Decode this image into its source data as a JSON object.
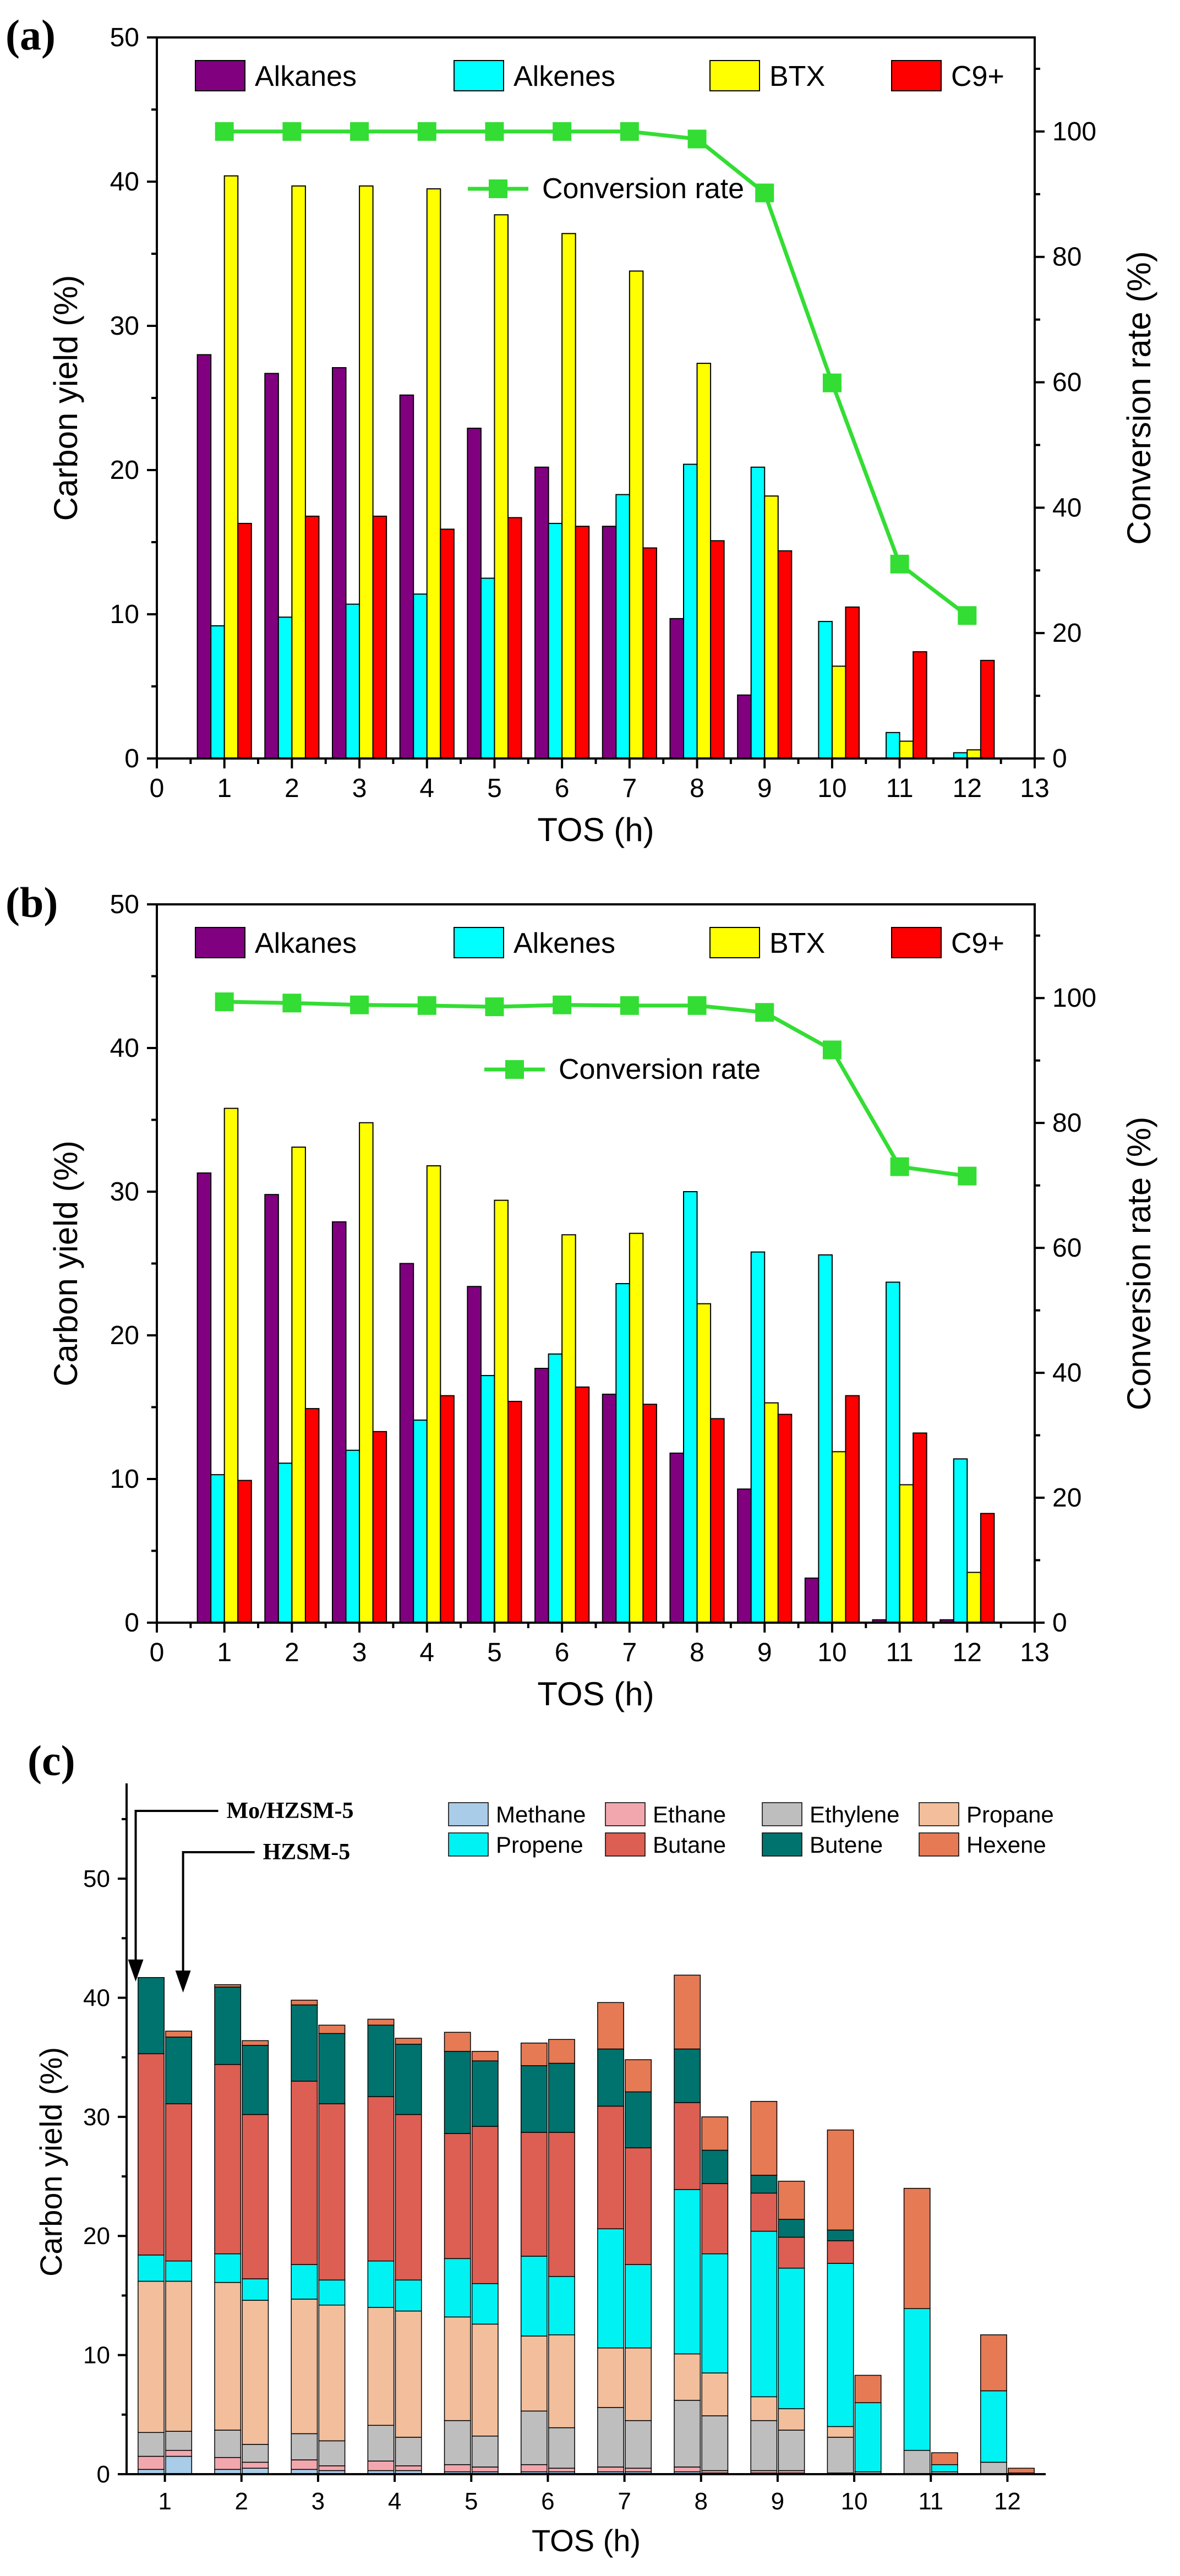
{
  "chart_data": [
    {
      "id": "a",
      "type": "bar",
      "panel_label": "(a)",
      "title": "",
      "xlabel": "TOS (h)",
      "ylabel": "Carbon yield (%)",
      "y2label": "Conversion rate (%)",
      "xlim": [
        0,
        13
      ],
      "ylim": [
        0,
        50
      ],
      "y2lim": [
        0,
        115
      ],
      "x_ticks": [
        "0",
        "1",
        "2",
        "3",
        "4",
        "5",
        "6",
        "7",
        "8",
        "9",
        "10",
        "11",
        "12",
        "13"
      ],
      "y_ticks": [
        "0",
        "10",
        "20",
        "30",
        "40",
        "50"
      ],
      "y2_ticks": [
        "0",
        "20",
        "40",
        "60",
        "80",
        "100"
      ],
      "categories": [
        1,
        2,
        3,
        4,
        5,
        6,
        7,
        8,
        9,
        10,
        11,
        12
      ],
      "legend": [
        "Alkanes",
        "Alkenes",
        "BTX",
        "C9+",
        "Conversion rate"
      ],
      "legend_position": "top",
      "series": [
        {
          "name": "Alkanes",
          "color": "#800080",
          "values": [
            28,
            26.7,
            27.1,
            25.2,
            22.9,
            20.2,
            16.1,
            9.7,
            4.4,
            0,
            0,
            0
          ]
        },
        {
          "name": "Alkenes",
          "color": "#00FFFF",
          "values": [
            9.2,
            9.8,
            10.7,
            11.4,
            12.5,
            16.3,
            18.3,
            20.4,
            20.2,
            9.5,
            1.8,
            0.4
          ]
        },
        {
          "name": "BTX",
          "color": "#FFFF00",
          "values": [
            40.4,
            39.7,
            39.7,
            39.5,
            37.7,
            36.4,
            33.8,
            27.4,
            18.2,
            6.4,
            1.2,
            0.6
          ]
        },
        {
          "name": "C9+",
          "color": "#FF0000",
          "values": [
            16.3,
            16.8,
            16.8,
            15.9,
            16.7,
            16.1,
            14.6,
            15.1,
            14.4,
            10.5,
            7.4,
            6.8
          ]
        }
      ],
      "line_series": {
        "name": "Conversion rate",
        "color": "#33DD33",
        "axis": "right",
        "values": [
          100,
          100,
          100,
          100,
          100,
          100,
          100,
          98.8,
          90.2,
          59.9,
          31,
          22.8
        ]
      }
    },
    {
      "id": "b",
      "type": "bar",
      "panel_label": "(b)",
      "title": "",
      "xlabel": "TOS (h)",
      "ylabel": "Carbon yield (%)",
      "y2label": "Conversion rate (%)",
      "xlim": [
        0,
        13
      ],
      "ylim": [
        0,
        50
      ],
      "y2lim": [
        0,
        115
      ],
      "x_ticks": [
        "0",
        "1",
        "2",
        "3",
        "4",
        "5",
        "6",
        "7",
        "8",
        "9",
        "10",
        "11",
        "12",
        "13"
      ],
      "y_ticks": [
        "0",
        "10",
        "20",
        "30",
        "40",
        "50"
      ],
      "y2_ticks": [
        "0",
        "20",
        "40",
        "60",
        "80",
        "100"
      ],
      "categories": [
        1,
        2,
        3,
        4,
        5,
        6,
        7,
        8,
        9,
        10,
        11,
        12
      ],
      "legend": [
        "Alkanes",
        "Alkenes",
        "BTX",
        "C9+",
        "Conversion rate"
      ],
      "legend_position": "top",
      "series": [
        {
          "name": "Alkanes",
          "color": "#800080",
          "values": [
            31.3,
            29.8,
            27.9,
            25,
            23.4,
            17.7,
            15.9,
            11.8,
            9.3,
            3.1,
            0.2,
            0.2
          ]
        },
        {
          "name": "Alkenes",
          "color": "#00FFFF",
          "values": [
            10.3,
            11.1,
            12,
            14.1,
            17.2,
            18.7,
            23.6,
            30,
            25.8,
            25.6,
            23.7,
            11.4
          ]
        },
        {
          "name": "BTX",
          "color": "#FFFF00",
          "values": [
            35.8,
            33.1,
            34.8,
            31.8,
            29.4,
            27,
            27.1,
            22.2,
            15.3,
            11.9,
            9.6,
            3.5
          ]
        },
        {
          "name": "C9+",
          "color": "#FF0000",
          "values": [
            9.9,
            14.9,
            13.3,
            15.8,
            15.4,
            16.4,
            15.2,
            14.2,
            14.5,
            15.8,
            13.2,
            7.6
          ]
        }
      ],
      "line_series": {
        "name": "Conversion rate",
        "color": "#33DD33",
        "axis": "right",
        "values": [
          99.4,
          99.2,
          98.9,
          98.8,
          98.6,
          98.9,
          98.8,
          98.8,
          97.7,
          91.7,
          73,
          71.5
        ]
      }
    },
    {
      "id": "c",
      "type": "bar",
      "stacked": true,
      "panel_label": "(c)",
      "title": "",
      "xlabel": "TOS (h)",
      "ylabel": "Carbon yield (%)",
      "xlim": [
        0.5,
        12.5
      ],
      "ylim": [
        0,
        58
      ],
      "x_ticks": [
        "1",
        "2",
        "3",
        "4",
        "5",
        "6",
        "7",
        "8",
        "9",
        "10",
        "11",
        "12"
      ],
      "y_ticks": [
        "0",
        "10",
        "20",
        "30",
        "40",
        "50"
      ],
      "categories": [
        1,
        2,
        3,
        4,
        5,
        6,
        7,
        8,
        9,
        10,
        11,
        12
      ],
      "groups": [
        "Mo/HZSM-5",
        "HZSM-5"
      ],
      "annotations": [
        "Mo/HZSM-5",
        "HZSM-5"
      ],
      "legend": [
        "Methane",
        "Ethane",
        "Ethylene",
        "Propane",
        "Propene",
        "Butane",
        "Butene",
        "Hexene"
      ],
      "legend_position": "top-right",
      "components": [
        {
          "name": "Methane",
          "color": "#A9CCE8"
        },
        {
          "name": "Ethane",
          "color": "#F2A7AE"
        },
        {
          "name": "Ethylene",
          "color": "#BEBEBE"
        },
        {
          "name": "Propane",
          "color": "#F2BE9B"
        },
        {
          "name": "Propene",
          "color": "#00F2F2"
        },
        {
          "name": "Butane",
          "color": "#DD5E52"
        },
        {
          "name": "Butene",
          "color": "#00736E"
        },
        {
          "name": "Hexene",
          "color": "#E57A55"
        }
      ],
      "series": [
        {
          "name": "Mo/HZSM-5",
          "stacks": [
            [
              0.4,
              1.1,
              2.0,
              12.7,
              2.2,
              16.9,
              6.4,
              0.0
            ],
            [
              0.4,
              1.0,
              2.3,
              12.4,
              2.4,
              15.9,
              6.5,
              0.2
            ],
            [
              0.4,
              0.8,
              2.2,
              11.3,
              2.9,
              15.4,
              6.4,
              0.4
            ],
            [
              0.3,
              0.8,
              3.0,
              9.9,
              3.9,
              13.8,
              6.0,
              0.5
            ],
            [
              0.2,
              0.6,
              3.7,
              8.7,
              4.9,
              10.5,
              6.9,
              1.6
            ],
            [
              0.2,
              0.6,
              4.5,
              6.3,
              6.7,
              10.4,
              5.6,
              1.9
            ],
            [
              0.2,
              0.4,
              5.0,
              5.0,
              10.0,
              10.3,
              4.8,
              3.9
            ],
            [
              0.2,
              0.4,
              5.6,
              3.9,
              13.8,
              7.3,
              4.5,
              6.2
            ],
            [
              0.1,
              0.2,
              4.2,
              2.0,
              13.9,
              3.2,
              1.5,
              6.2
            ],
            [
              0.0,
              0.1,
              3.0,
              0.9,
              13.7,
              1.9,
              0.9,
              8.4
            ],
            [
              0.0,
              0.0,
              2.0,
              0.0,
              11.9,
              0.0,
              0.0,
              10.1
            ],
            [
              0.0,
              0.0,
              1.0,
              0.0,
              6.0,
              0.0,
              0.0,
              4.7
            ]
          ]
        },
        {
          "name": "HZSM-5",
          "stacks": [
            [
              1.5,
              0.5,
              1.6,
              12.6,
              1.7,
              13.2,
              5.6,
              0.5
            ],
            [
              0.5,
              0.5,
              1.5,
              12.1,
              1.8,
              13.8,
              5.8,
              0.4
            ],
            [
              0.3,
              0.4,
              2.1,
              11.4,
              2.1,
              14.8,
              5.9,
              0.7
            ],
            [
              0.3,
              0.4,
              2.4,
              10.6,
              2.6,
              13.9,
              5.9,
              0.5
            ],
            [
              0.2,
              0.4,
              2.6,
              9.4,
              3.4,
              13.2,
              5.5,
              0.8
            ],
            [
              0.2,
              0.3,
              3.4,
              7.8,
              4.9,
              12.1,
              5.8,
              2.0
            ],
            [
              0.2,
              0.3,
              4.0,
              6.1,
              7.0,
              9.8,
              4.7,
              2.7
            ],
            [
              0.1,
              0.2,
              4.6,
              3.6,
              10.0,
              5.9,
              2.8,
              2.8
            ],
            [
              0.1,
              0.2,
              3.4,
              1.8,
              11.8,
              2.6,
              1.5,
              3.2
            ],
            [
              0.0,
              0.0,
              0.2,
              0.0,
              5.8,
              0.0,
              0.0,
              2.3
            ],
            [
              0.0,
              0.0,
              0.2,
              0.0,
              0.6,
              0.0,
              0.0,
              1.0
            ],
            [
              0.0,
              0.0,
              0.1,
              0.0,
              0.0,
              0.0,
              0.0,
              0.4
            ]
          ]
        }
      ]
    }
  ]
}
